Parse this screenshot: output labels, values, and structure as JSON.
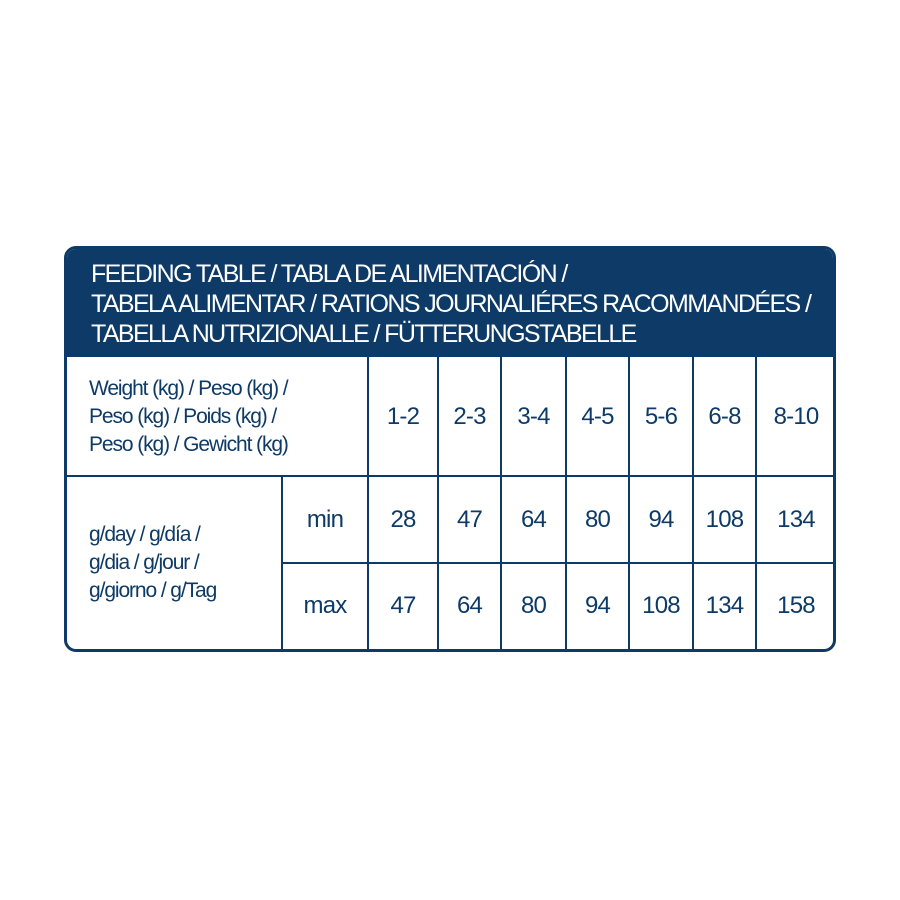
{
  "title_lines": [
    "FEEDING TABLE / TABLA DE ALIMENTACIÓN /",
    "TABELA ALIMENTAR / RATIONS JOURNALIÉRES RACOMMANDÉES /",
    "TABELLA NUTRIZIONALLE / FÜTTERUNGSTABELLE"
  ],
  "weight_label_lines": [
    "Weight (kg) / Peso (kg) /",
    "Peso (kg) / Poids (kg) /",
    "Peso (kg) / Gewicht (kg)"
  ],
  "weights": [
    "1-2",
    "2-3",
    "3-4",
    "4-5",
    "5-6",
    "6-8",
    "8-10"
  ],
  "amount_label_lines": [
    "g/day / g/día /",
    "g/dia / g/jour /",
    "g/giorno / g/Tag"
  ],
  "rows": [
    {
      "label": "min",
      "values": [
        "28",
        "47",
        "64",
        "80",
        "94",
        "108",
        "134"
      ]
    },
    {
      "label": "max",
      "values": [
        "47",
        "64",
        "80",
        "94",
        "108",
        "134",
        "158"
      ]
    }
  ],
  "colors": {
    "brand": "#0d3a66"
  }
}
